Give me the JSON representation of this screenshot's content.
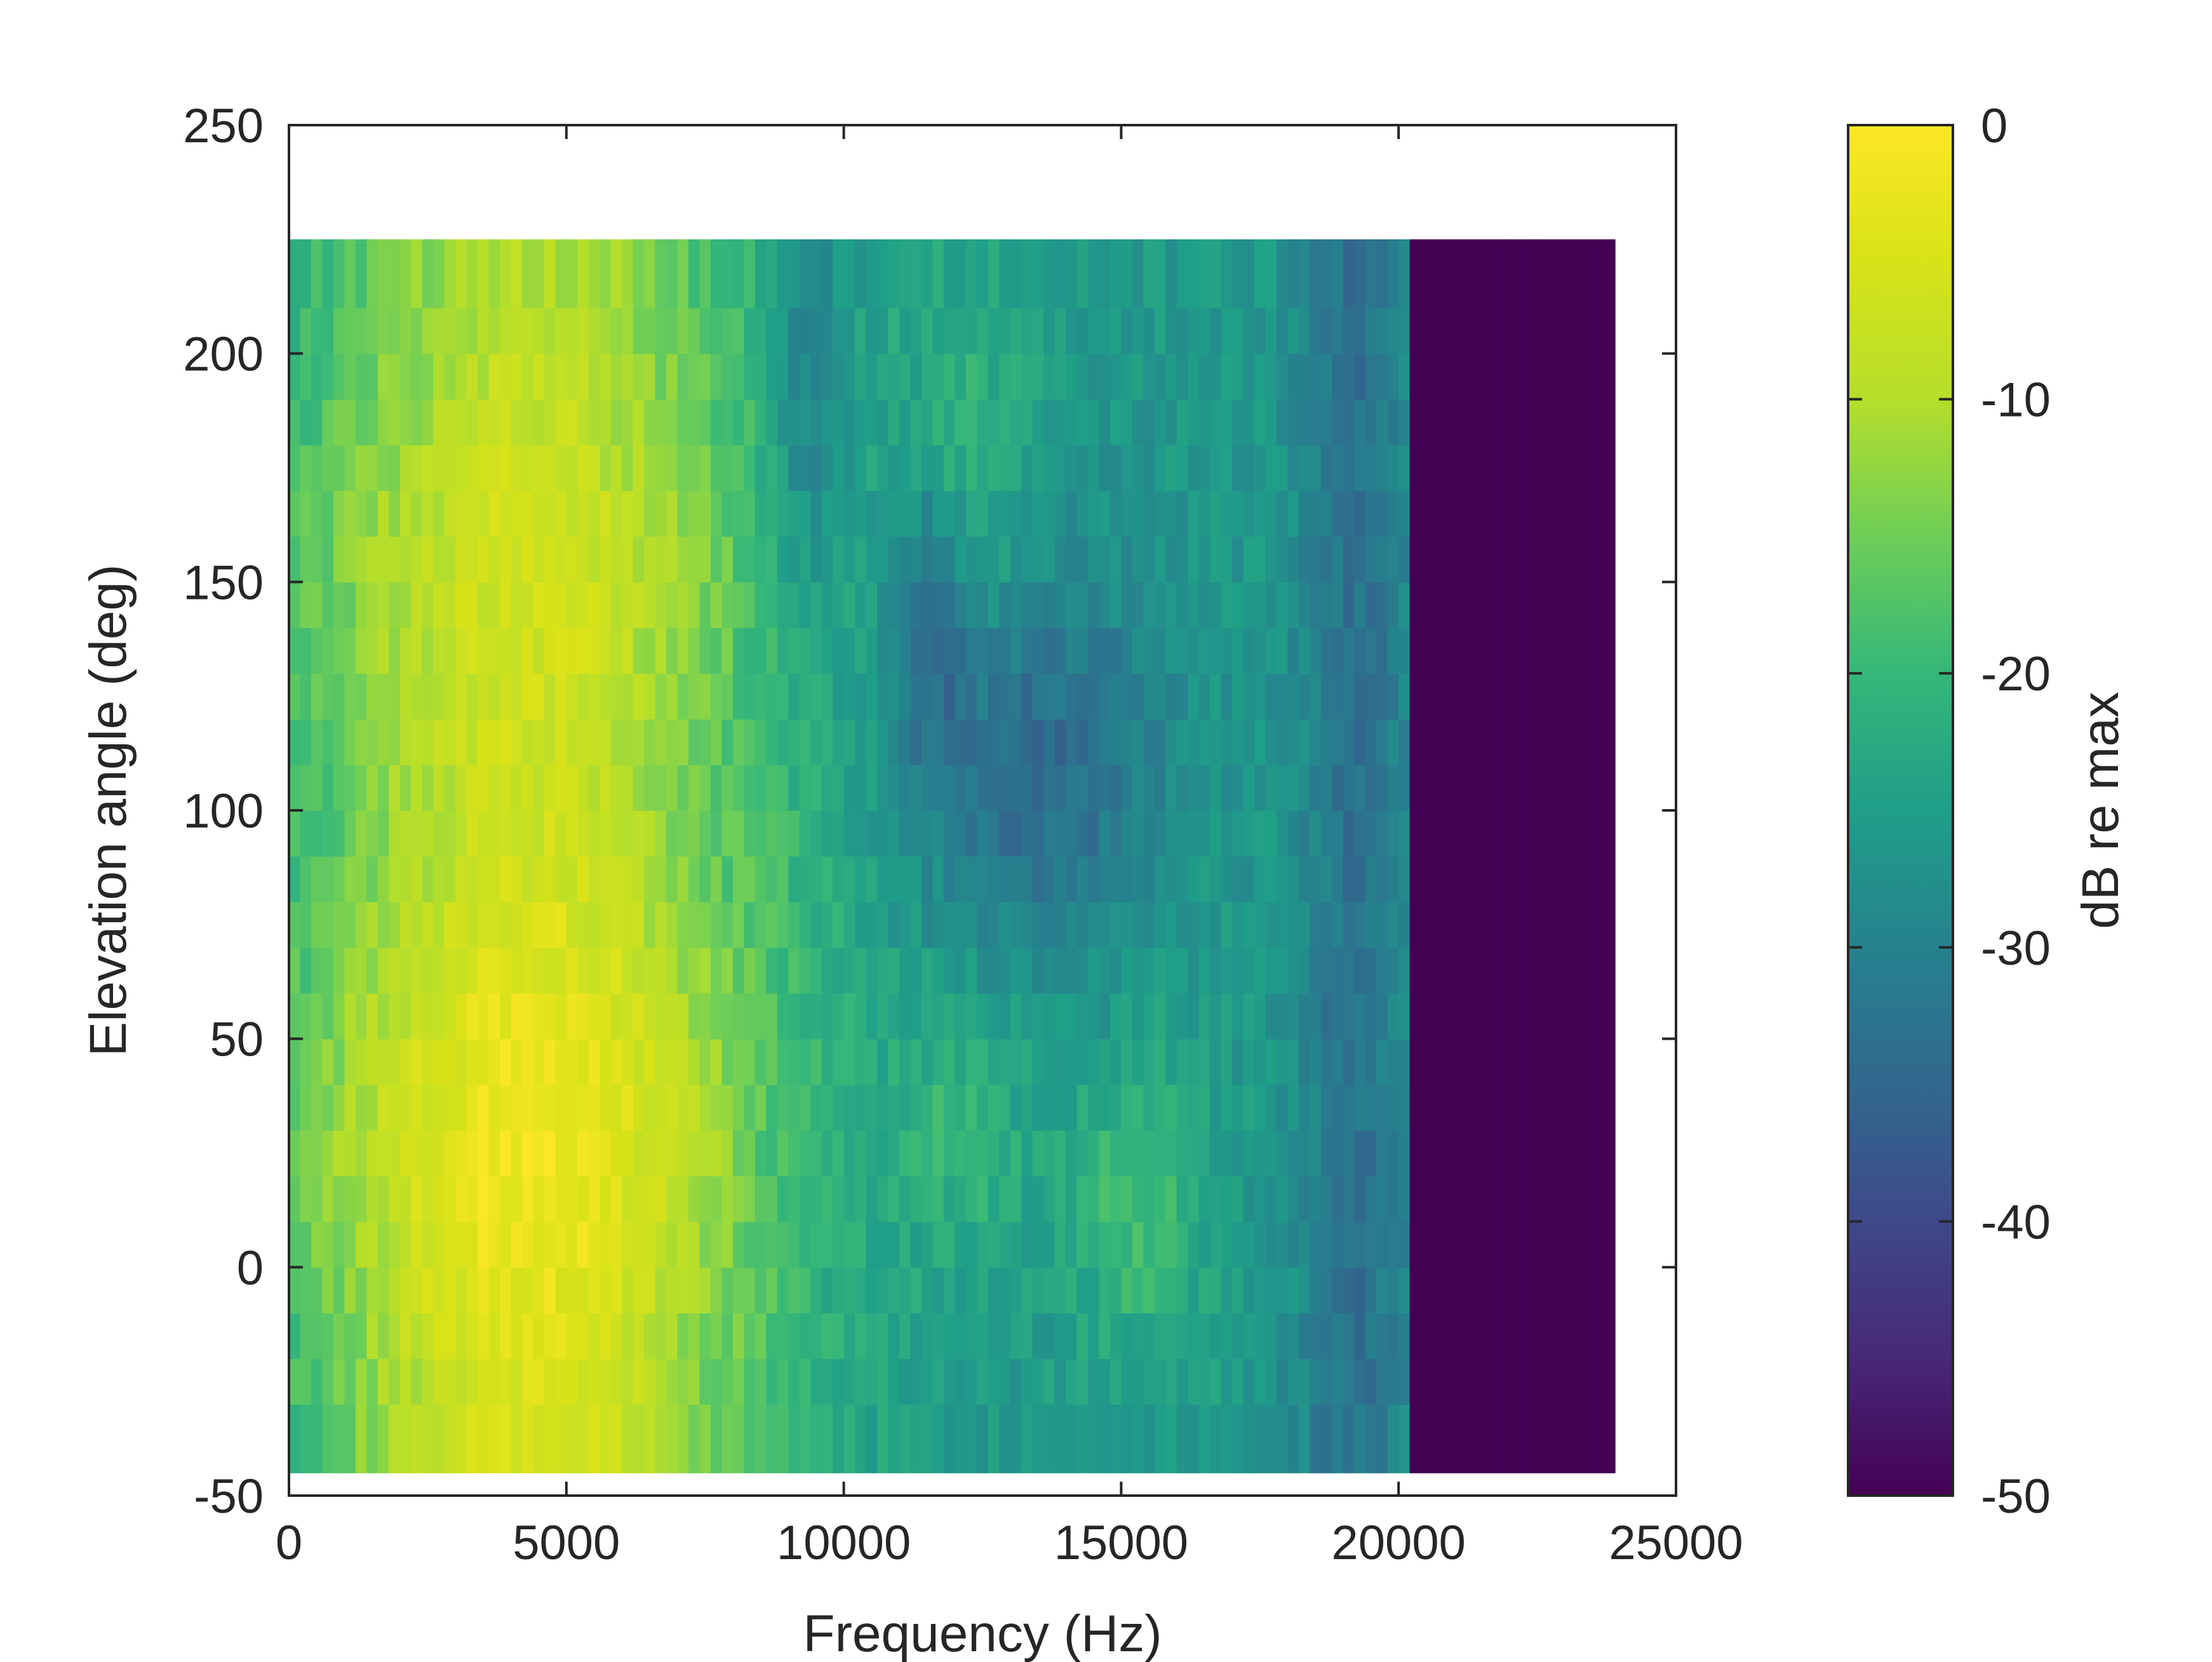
{
  "chart_data": {
    "type": "heatmap",
    "xlabel": "Frequency (Hz)",
    "ylabel": "Elevation angle (deg)",
    "xlim": [
      0,
      25000
    ],
    "ylim": [
      -50,
      250
    ],
    "x_ticks": [
      0,
      5000,
      10000,
      15000,
      20000,
      25000
    ],
    "y_ticks": [
      -50,
      0,
      50,
      100,
      150,
      200,
      250
    ],
    "grid": false,
    "colormap": "viridis",
    "colorbar": {
      "label": "dB re max",
      "limits": [
        -50,
        0
      ],
      "ticks": [
        0,
        -10,
        -20,
        -30,
        -40,
        -50
      ],
      "position": "right"
    },
    "x_extent_hz": [
      0,
      23900
    ],
    "y_extent_deg": [
      -45,
      225
    ],
    "elevation_rows_deg": [
      -45,
      -30,
      -20,
      -10,
      0,
      10,
      20,
      30,
      40,
      50,
      60,
      70,
      80,
      90,
      100,
      110,
      120,
      130,
      140,
      150,
      160,
      170,
      180,
      190,
      200,
      210,
      225
    ],
    "value_description_dB": {
      "peak_region_hz": [
        3500,
        6000
      ],
      "peak_region_deg": [
        -15,
        45
      ],
      "peak_value_dB": 0,
      "cutoff_hz": 20200,
      "above_cutoff_value_dB": -50
    }
  },
  "colors": {
    "viridis_low": "#440154",
    "viridis_mid": "#21918c",
    "viridis_high": "#fde725",
    "axis": "#262626"
  }
}
